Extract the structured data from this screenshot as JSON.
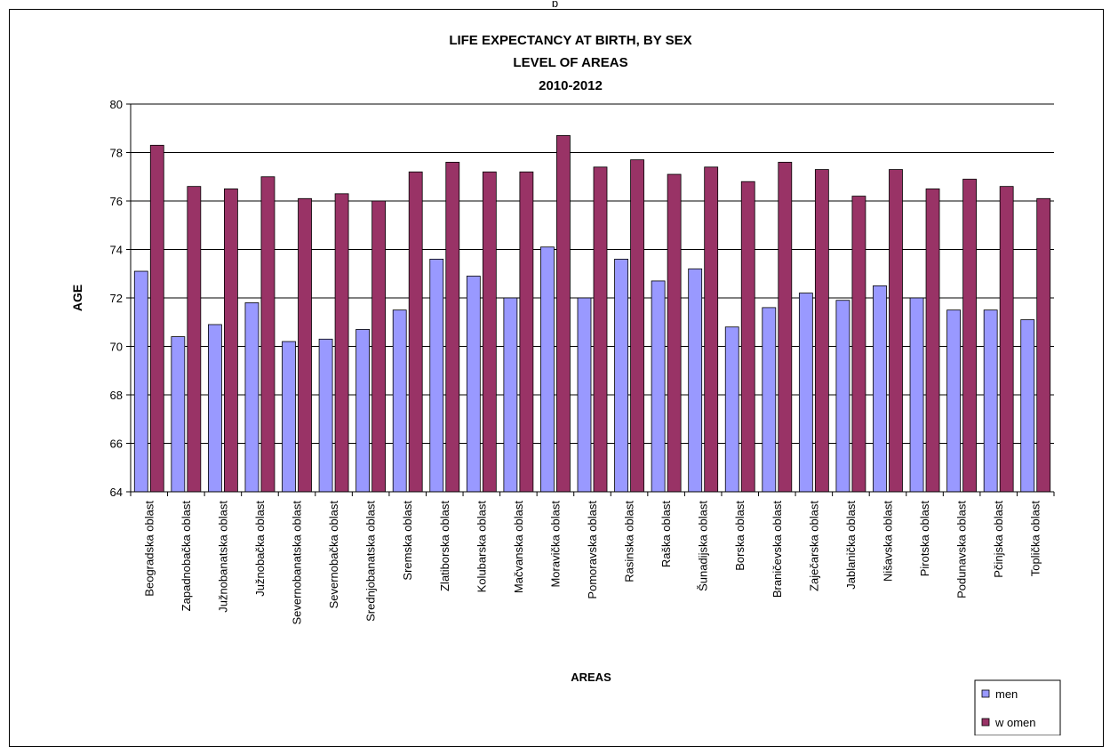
{
  "top_label": "p",
  "chart_data": {
    "type": "bar",
    "title_lines": [
      "LIFE EXPECTANCY AT BIRTH, BY SEX",
      "LEVEL OF AREAS",
      "2010-2012"
    ],
    "xlabel": "AREAS",
    "ylabel": "AGE",
    "ylim": [
      64,
      80
    ],
    "yticks": [
      64,
      66,
      68,
      70,
      72,
      74,
      76,
      78,
      80
    ],
    "grid": true,
    "legend_position": "bottom-right",
    "categories": [
      "Beogradska oblast",
      "Zapadnobačka oblast",
      "Južnobanatska oblast",
      "Južnobačka oblast",
      "Severnobanatska oblast",
      "Severnobačka oblast",
      "Srednjobanatska oblast",
      "Sremska oblast",
      "Zlatiborska oblast",
      "Kolubarska oblast",
      "Mačvanska oblast",
      "Moravička oblast",
      "Pomoravska oblast",
      "Rasinska oblast",
      "Raška oblast",
      "Šunadijska oblast",
      "Borska oblast",
      "Braničevska oblast",
      "Zaječarska oblast",
      "Jablanička oblast",
      "Nišavska oblast",
      "Pirotska oblast",
      "Podunavska oblast",
      "Pčinjska oblast",
      "Toplička oblast"
    ],
    "series": [
      {
        "name": "men",
        "color": "#9999ff",
        "values": [
          73.1,
          70.4,
          70.9,
          71.8,
          70.2,
          70.3,
          70.7,
          71.5,
          73.6,
          72.9,
          72.0,
          74.1,
          72.0,
          73.6,
          72.7,
          73.2,
          70.8,
          71.6,
          72.2,
          71.9,
          72.5,
          72.0,
          71.5,
          71.5,
          71.1
        ]
      },
      {
        "name": "w omen",
        "color": "#993366",
        "values": [
          78.3,
          76.6,
          76.5,
          77.0,
          76.1,
          76.3,
          76.0,
          77.2,
          77.6,
          77.2,
          77.2,
          78.7,
          77.4,
          77.7,
          77.1,
          77.4,
          76.8,
          77.6,
          77.3,
          76.2,
          77.3,
          76.5,
          76.9,
          76.6,
          76.1
        ]
      }
    ]
  }
}
